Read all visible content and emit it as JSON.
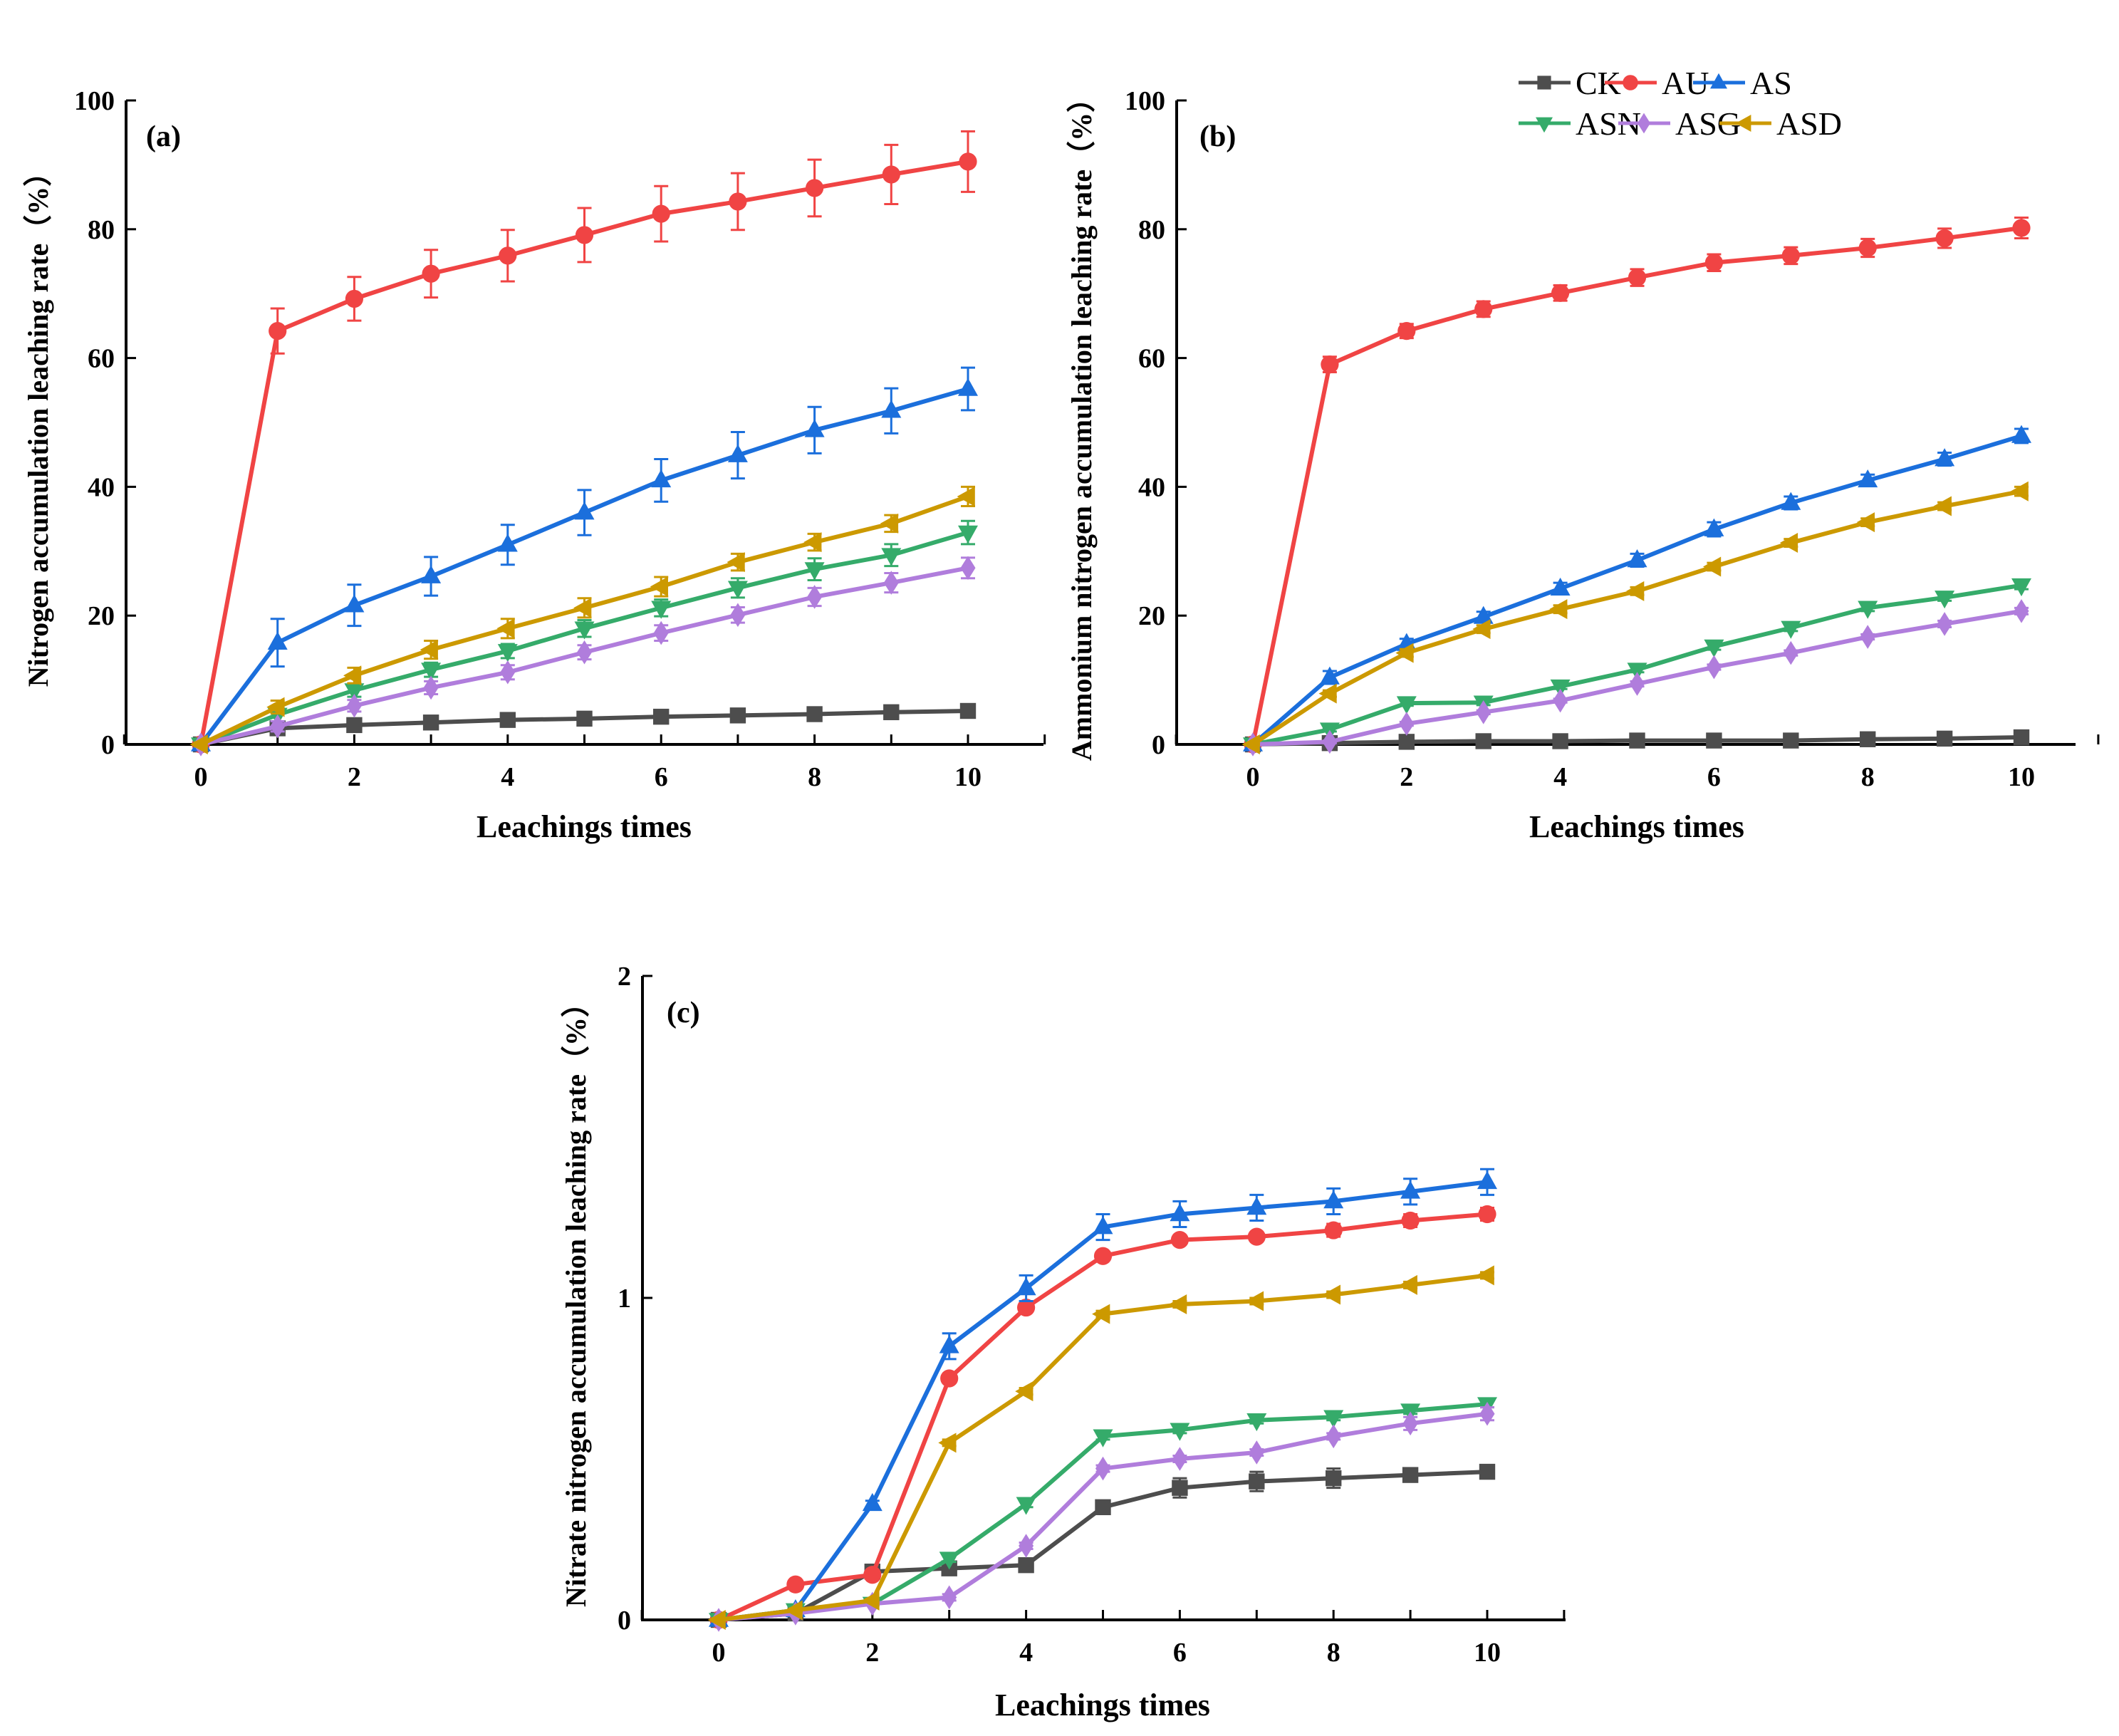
{
  "legend": {
    "placement": "top-right of panel (b)",
    "entries": [
      "CK",
      "AU",
      "AS",
      "ASN",
      "ASG",
      "ASD"
    ]
  },
  "series_style": {
    "CK": {
      "color": "#4d4d4d",
      "marker": "square"
    },
    "AU": {
      "color": "#f04444",
      "marker": "circle"
    },
    "AS": {
      "color": "#1b6fdc",
      "marker": "triangle-up"
    },
    "ASN": {
      "color": "#35ab6a",
      "marker": "triangle-down"
    },
    "ASG": {
      "color": "#b07ddc",
      "marker": "diamond"
    },
    "ASD": {
      "color": "#cc9900",
      "marker": "triangle-left"
    }
  },
  "chart_data": [
    {
      "type": "line",
      "panel_label": "(a)",
      "xlabel": "Leachings times",
      "ylabel": "Nitrogen accumulation leaching rate（%）",
      "xlim": [
        -1,
        11
      ],
      "ylim": [
        0,
        100
      ],
      "xticks": [
        0,
        2,
        4,
        6,
        8,
        10
      ],
      "yticks": [
        0,
        20,
        40,
        60,
        80,
        100
      ],
      "grid": false,
      "x": [
        0,
        1,
        2,
        3,
        4,
        5,
        6,
        7,
        8,
        9,
        10
      ],
      "series": [
        {
          "name": "CK",
          "values": [
            0,
            2.5,
            3.0,
            3.4,
            3.8,
            4.0,
            4.3,
            4.5,
            4.7,
            5.0,
            5.2
          ],
          "err": [
            0.3,
            0.4,
            0.4,
            0.4,
            0.4,
            0.4,
            0.4,
            0.4,
            0.4,
            0.4,
            0.4
          ]
        },
        {
          "name": "AU",
          "values": [
            0,
            64.2,
            69.2,
            73.1,
            75.9,
            79.1,
            82.4,
            84.3,
            86.4,
            88.5,
            90.5
          ],
          "err": [
            0.5,
            3.5,
            3.4,
            3.7,
            4.0,
            4.2,
            4.3,
            4.4,
            4.4,
            4.6,
            4.7
          ]
        },
        {
          "name": "AS",
          "values": [
            0,
            15.8,
            21.6,
            26.1,
            31.0,
            36.0,
            41.0,
            44.9,
            48.8,
            51.8,
            55.2
          ],
          "err": [
            0.5,
            3.7,
            3.2,
            3.0,
            3.1,
            3.5,
            3.3,
            3.6,
            3.6,
            3.5,
            3.3
          ]
        },
        {
          "name": "ASN",
          "values": [
            0,
            4.6,
            8.4,
            11.6,
            14.5,
            18.0,
            21.2,
            24.3,
            27.2,
            29.4,
            32.9
          ],
          "err": [
            0.3,
            1.0,
            1.0,
            1.1,
            1.1,
            1.3,
            1.3,
            1.5,
            1.7,
            1.7,
            1.8
          ]
        },
        {
          "name": "ASG",
          "values": [
            0,
            2.8,
            6.0,
            8.8,
            11.2,
            14.3,
            17.3,
            20.1,
            22.9,
            25.1,
            27.4
          ],
          "err": [
            0.3,
            0.8,
            0.9,
            1.0,
            1.1,
            1.1,
            1.2,
            1.2,
            1.4,
            1.5,
            1.6
          ]
        },
        {
          "name": "ASD",
          "values": [
            0,
            5.8,
            10.7,
            14.7,
            18.0,
            21.2,
            24.5,
            28.3,
            31.4,
            34.3,
            38.5
          ],
          "err": [
            0.3,
            1.0,
            1.2,
            1.4,
            1.5,
            1.5,
            1.5,
            1.3,
            1.3,
            1.3,
            1.5
          ]
        }
      ]
    },
    {
      "type": "line",
      "panel_label": "(b)",
      "xlabel": "Leachings times",
      "ylabel": "Ammonium nitrogen  accumulation leaching rate（%）",
      "xlim": [
        -1,
        11
      ],
      "ylim": [
        0,
        100
      ],
      "xticks": [
        0,
        2,
        4,
        6,
        8,
        10
      ],
      "yticks": [
        0,
        20,
        40,
        60,
        80,
        100
      ],
      "grid": false,
      "x": [
        0,
        1,
        2,
        3,
        4,
        5,
        6,
        7,
        8,
        9,
        10
      ],
      "series": [
        {
          "name": "CK",
          "values": [
            0,
            0.2,
            0.4,
            0.5,
            0.5,
            0.6,
            0.6,
            0.6,
            0.8,
            0.9,
            1.1
          ],
          "err": [
            0.1,
            0.1,
            0.1,
            0.1,
            0.1,
            0.1,
            0.1,
            0.1,
            0.1,
            0.1,
            0.2
          ]
        },
        {
          "name": "AU",
          "values": [
            0,
            59.0,
            64.2,
            67.6,
            70.1,
            72.5,
            74.8,
            75.9,
            77.1,
            78.6,
            80.2
          ],
          "err": [
            0.3,
            1.2,
            1.1,
            1.2,
            1.2,
            1.3,
            1.3,
            1.3,
            1.4,
            1.5,
            1.6
          ]
        },
        {
          "name": "AS",
          "values": [
            0,
            10.4,
            15.6,
            19.8,
            24.2,
            28.6,
            33.4,
            37.5,
            41.0,
            44.3,
            47.9
          ],
          "err": [
            0.2,
            1.0,
            0.8,
            0.8,
            0.9,
            1.0,
            1.1,
            1.0,
            0.9,
            1.0,
            1.1
          ]
        },
        {
          "name": "ASN",
          "values": [
            0,
            2.3,
            6.4,
            6.5,
            9.0,
            11.6,
            15.2,
            18.1,
            21.2,
            22.8,
            24.7
          ],
          "err": [
            0.1,
            0.3,
            0.4,
            0.4,
            0.4,
            0.4,
            0.5,
            0.5,
            0.5,
            0.5,
            0.6
          ]
        },
        {
          "name": "ASG",
          "values": [
            0,
            0.4,
            3.2,
            5.0,
            6.8,
            9.4,
            12.0,
            14.2,
            16.7,
            18.7,
            20.7
          ],
          "err": [
            0.1,
            0.2,
            0.3,
            0.3,
            0.3,
            0.4,
            0.4,
            0.4,
            0.4,
            0.5,
            0.5
          ]
        },
        {
          "name": "ASD",
          "values": [
            0,
            7.9,
            14.2,
            17.9,
            21.0,
            23.8,
            27.6,
            31.3,
            34.5,
            37.0,
            39.3
          ],
          "err": [
            0.1,
            0.5,
            0.6,
            0.6,
            0.6,
            0.6,
            0.6,
            0.6,
            0.6,
            0.6,
            0.7
          ]
        }
      ]
    },
    {
      "type": "line",
      "panel_label": "(c)",
      "xlabel": "Leachings times",
      "ylabel": "Nitrate  nitrogen  accumulation leaching rate（%）",
      "xlim": [
        -1,
        11
      ],
      "ylim": [
        0,
        2
      ],
      "xticks": [
        0,
        2,
        4,
        6,
        8,
        10
      ],
      "yticks": [
        0,
        1,
        2
      ],
      "grid": false,
      "x": [
        0,
        1,
        2,
        3,
        4,
        5,
        6,
        7,
        8,
        9,
        10
      ],
      "series": [
        {
          "name": "CK",
          "values": [
            0,
            0.02,
            0.15,
            0.16,
            0.17,
            0.35,
            0.41,
            0.43,
            0.44,
            0.45,
            0.46
          ],
          "err": [
            0.005,
            0.005,
            0.01,
            0.01,
            0.01,
            0.02,
            0.03,
            0.03,
            0.03,
            0.02,
            0.02
          ]
        },
        {
          "name": "AU",
          "values": [
            0,
            0.11,
            0.14,
            0.75,
            0.97,
            1.13,
            1.18,
            1.19,
            1.21,
            1.24,
            1.26
          ],
          "err": [
            0.005,
            0.01,
            0.01,
            0.01,
            0.01,
            0.01,
            0.01,
            0.01,
            0.02,
            0.02,
            0.02
          ]
        },
        {
          "name": "AS",
          "values": [
            0,
            0.03,
            0.36,
            0.85,
            1.03,
            1.22,
            1.26,
            1.28,
            1.3,
            1.33,
            1.36
          ],
          "err": [
            0.005,
            0.01,
            0.01,
            0.04,
            0.04,
            0.04,
            0.04,
            0.04,
            0.04,
            0.04,
            0.04
          ]
        },
        {
          "name": "ASN",
          "values": [
            0,
            0.03,
            0.05,
            0.19,
            0.36,
            0.57,
            0.59,
            0.62,
            0.63,
            0.65,
            0.67
          ],
          "err": [
            0.005,
            0.005,
            0.005,
            0.01,
            0.01,
            0.01,
            0.01,
            0.01,
            0.01,
            0.01,
            0.01
          ]
        },
        {
          "name": "ASG",
          "values": [
            0,
            0.02,
            0.05,
            0.07,
            0.23,
            0.47,
            0.5,
            0.52,
            0.57,
            0.61,
            0.64
          ],
          "err": [
            0.005,
            0.005,
            0.005,
            0.01,
            0.01,
            0.01,
            0.01,
            0.01,
            0.01,
            0.02,
            0.02
          ]
        },
        {
          "name": "ASD",
          "values": [
            0,
            0.03,
            0.06,
            0.55,
            0.71,
            0.95,
            0.98,
            0.99,
            1.01,
            1.04,
            1.07
          ],
          "err": [
            0.005,
            0.005,
            0.005,
            0.01,
            0.01,
            0.01,
            0.01,
            0.01,
            0.01,
            0.01,
            0.01
          ]
        }
      ]
    }
  ]
}
